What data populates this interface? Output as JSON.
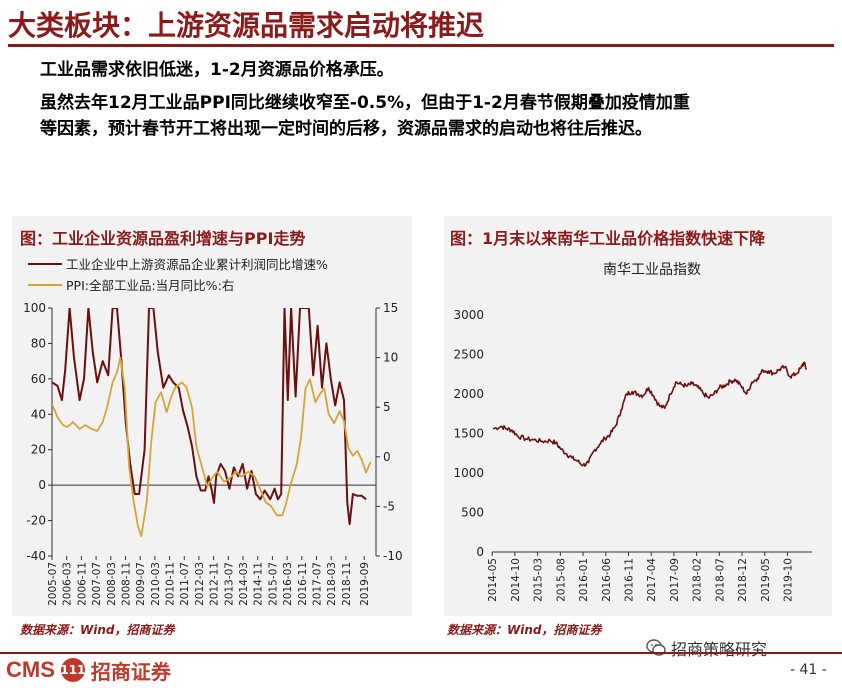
{
  "header": {
    "title": "大类板块：上游资源品需求启动将推迟"
  },
  "body": {
    "line1": "工业品需求依旧低迷，1-2月资源品价格承压。",
    "line2": "虽然去年12月工业品PPI同比继续收窄至-0.5%，但由于1-2月春节假期叠加疫情加重",
    "line3": "等因素，预计春节开工将出现一定时间的后移，资源品需求的启动也将往后推迟。"
  },
  "colors": {
    "accent": "#8b1a1a",
    "series_profit": "#6b0f0f",
    "series_ppi": "#d4a53a",
    "nanhua": "#6b0f0f"
  },
  "figure1": {
    "title": "图：工业企业资源品盈利增速与PPI走势",
    "source": "数据来源：Wind，招商证券"
  },
  "figure2": {
    "title": "图：1月末以来南华工业品价格指数快速下降",
    "source": "数据来源：Wind，招商证券"
  },
  "footer": {
    "brand_en": "CMS",
    "brand_badge": "111",
    "brand_cn": "招商证券",
    "wechat_account": "招商策略研究",
    "page_number": "- 41 -"
  },
  "chart_data": [
    {
      "type": "line",
      "title": "",
      "legend": [
        "工业企业中上游资源品企业累计利润同比增速%",
        "PPI:全部工业品:当月同比%:右"
      ],
      "legend_position": "top-left",
      "x_ticks": [
        "2005-07",
        "2006-03",
        "2006-11",
        "2007-07",
        "2008-03",
        "2008-11",
        "2009-07",
        "2010-03",
        "2010-11",
        "2011-07",
        "2012-03",
        "2012-11",
        "2013-07",
        "2014-03",
        "2014-11",
        "2015-07",
        "2016-03",
        "2016-11",
        "2017-07",
        "2018-03",
        "2018-11",
        "2019-09"
      ],
      "y_left": {
        "ticks": [
          -40,
          -20,
          0,
          20,
          40,
          60,
          80,
          100
        ],
        "range": [
          -40,
          100
        ]
      },
      "y_right": {
        "ticks": [
          -10,
          -5,
          0,
          5,
          10,
          15
        ],
        "range": [
          -10,
          15
        ]
      },
      "x_range": [
        2005.5,
        2020.2
      ],
      "grid": false,
      "series": [
        {
          "name": "工业企业中上游资源品企业累计利润同比增速%",
          "axis": "left",
          "color": "#6b0f0f",
          "points": [
            [
              2005.5,
              58
            ],
            [
              2005.75,
              56
            ],
            [
              2005.95,
              48
            ],
            [
              2006.1,
              65
            ],
            [
              2006.3,
              100
            ],
            [
              2006.5,
              72
            ],
            [
              2006.75,
              48
            ],
            [
              2006.95,
              60
            ],
            [
              2007.15,
              100
            ],
            [
              2007.35,
              75
            ],
            [
              2007.55,
              58
            ],
            [
              2007.8,
              70
            ],
            [
              2008.05,
              62
            ],
            [
              2008.25,
              100
            ],
            [
              2008.45,
              100
            ],
            [
              2008.65,
              70
            ],
            [
              2008.85,
              35
            ],
            [
              2009.05,
              12
            ],
            [
              2009.25,
              -5
            ],
            [
              2009.45,
              -5
            ],
            [
              2009.7,
              20
            ],
            [
              2009.9,
              100
            ],
            [
              2010.1,
              100
            ],
            [
              2010.3,
              75
            ],
            [
              2010.55,
              55
            ],
            [
              2010.8,
              62
            ],
            [
              2011.0,
              58
            ],
            [
              2011.25,
              55
            ],
            [
              2011.45,
              42
            ],
            [
              2011.65,
              33
            ],
            [
              2011.85,
              22
            ],
            [
              2012.05,
              5
            ],
            [
              2012.25,
              -3
            ],
            [
              2012.45,
              -3
            ],
            [
              2012.6,
              5
            ],
            [
              2012.75,
              -3
            ],
            [
              2012.85,
              -10
            ],
            [
              2012.95,
              5
            ],
            [
              2013.15,
              12
            ],
            [
              2013.35,
              8
            ],
            [
              2013.55,
              -2
            ],
            [
              2013.75,
              10
            ],
            [
              2013.95,
              5
            ],
            [
              2014.15,
              12
            ],
            [
              2014.35,
              -2
            ],
            [
              2014.55,
              8
            ],
            [
              2014.75,
              -5
            ],
            [
              2014.95,
              -8
            ],
            [
              2015.15,
              -3
            ],
            [
              2015.4,
              -8
            ],
            [
              2015.6,
              -2
            ],
            [
              2015.75,
              -8
            ],
            [
              2015.9,
              -5
            ],
            [
              2016.05,
              100
            ],
            [
              2016.2,
              48
            ],
            [
              2016.35,
              100
            ],
            [
              2016.55,
              50
            ],
            [
              2016.75,
              100
            ],
            [
              2016.95,
              100
            ],
            [
              2017.15,
              100
            ],
            [
              2017.35,
              62
            ],
            [
              2017.55,
              90
            ],
            [
              2017.75,
              55
            ],
            [
              2017.95,
              80
            ],
            [
              2018.15,
              60
            ],
            [
              2018.35,
              45
            ],
            [
              2018.55,
              58
            ],
            [
              2018.75,
              48
            ],
            [
              2018.9,
              -10
            ],
            [
              2019.0,
              -22
            ],
            [
              2019.15,
              -5
            ],
            [
              2019.35,
              -6
            ],
            [
              2019.55,
              -6
            ],
            [
              2019.75,
              -8
            ]
          ]
        },
        {
          "name": "PPI:全部工业品:当月同比%:右",
          "axis": "right",
          "color": "#d4a53a",
          "points": [
            [
              2005.5,
              5.3
            ],
            [
              2005.75,
              4.0
            ],
            [
              2006.0,
              3.2
            ],
            [
              2006.2,
              3.0
            ],
            [
              2006.45,
              3.5
            ],
            [
              2006.75,
              2.8
            ],
            [
              2007.0,
              3.2
            ],
            [
              2007.3,
              2.8
            ],
            [
              2007.55,
              2.6
            ],
            [
              2007.8,
              3.5
            ],
            [
              2008.0,
              5.0
            ],
            [
              2008.25,
              7.5
            ],
            [
              2008.45,
              8.5
            ],
            [
              2008.6,
              10.0
            ],
            [
              2008.8,
              7.0
            ],
            [
              2009.0,
              -1.0
            ],
            [
              2009.2,
              -4.5
            ],
            [
              2009.4,
              -7.0
            ],
            [
              2009.55,
              -8.0
            ],
            [
              2009.8,
              -4.5
            ],
            [
              2010.0,
              1.5
            ],
            [
              2010.2,
              5.5
            ],
            [
              2010.45,
              6.5
            ],
            [
              2010.7,
              4.5
            ],
            [
              2010.9,
              6.0
            ],
            [
              2011.1,
              7.0
            ],
            [
              2011.4,
              7.5
            ],
            [
              2011.6,
              7.0
            ],
            [
              2011.85,
              5.0
            ],
            [
              2012.05,
              1.0
            ],
            [
              2012.3,
              -1.0
            ],
            [
              2012.55,
              -3.0
            ],
            [
              2012.8,
              -2.0
            ],
            [
              2013.0,
              -1.5
            ],
            [
              2013.3,
              -2.5
            ],
            [
              2013.55,
              -2.2
            ],
            [
              2013.85,
              -1.5
            ],
            [
              2014.1,
              -2.0
            ],
            [
              2014.4,
              -1.5
            ],
            [
              2014.7,
              -2.0
            ],
            [
              2014.95,
              -3.3
            ],
            [
              2015.2,
              -4.6
            ],
            [
              2015.45,
              -5.0
            ],
            [
              2015.7,
              -5.9
            ],
            [
              2015.95,
              -5.9
            ],
            [
              2016.1,
              -4.9
            ],
            [
              2016.35,
              -2.6
            ],
            [
              2016.6,
              -0.8
            ],
            [
              2016.8,
              2.0
            ],
            [
              2017.0,
              6.9
            ],
            [
              2017.2,
              7.8
            ],
            [
              2017.45,
              5.5
            ],
            [
              2017.65,
              6.3
            ],
            [
              2017.85,
              6.9
            ],
            [
              2018.05,
              4.3
            ],
            [
              2018.3,
              3.4
            ],
            [
              2018.55,
              4.6
            ],
            [
              2018.75,
              3.6
            ],
            [
              2018.95,
              0.9
            ],
            [
              2019.15,
              0.1
            ],
            [
              2019.35,
              0.6
            ],
            [
              2019.55,
              -0.3
            ],
            [
              2019.75,
              -1.6
            ],
            [
              2019.95,
              -0.5
            ]
          ]
        }
      ]
    },
    {
      "type": "line",
      "title": "南华工业品指数",
      "x_ticks": [
        "2014-05",
        "2014-10",
        "2015-03",
        "2015-08",
        "2016-01",
        "2016-06",
        "2016-11",
        "2017-04",
        "2017-09",
        "2018-02",
        "2018-07",
        "2018-12",
        "2019-05",
        "2019-10"
      ],
      "y": {
        "ticks": [
          0,
          500,
          1000,
          1500,
          2000,
          2500,
          3000
        ],
        "range": [
          0,
          3000
        ]
      },
      "x_range": [
        2014.33,
        2020.2
      ],
      "grid": false,
      "series": [
        {
          "name": "",
          "color": "#6b0f0f",
          "points": [
            [
              2014.35,
              1560
            ],
            [
              2014.5,
              1590
            ],
            [
              2014.6,
              1560
            ],
            [
              2014.7,
              1540
            ],
            [
              2014.8,
              1470
            ],
            [
              2014.95,
              1430
            ],
            [
              2015.1,
              1420
            ],
            [
              2015.25,
              1400
            ],
            [
              2015.4,
              1410
            ],
            [
              2015.5,
              1380
            ],
            [
              2015.6,
              1300
            ],
            [
              2015.7,
              1240
            ],
            [
              2015.8,
              1190
            ],
            [
              2015.9,
              1150
            ],
            [
              2016.0,
              1100
            ],
            [
              2016.1,
              1130
            ],
            [
              2016.2,
              1280
            ],
            [
              2016.3,
              1360
            ],
            [
              2016.4,
              1440
            ],
            [
              2016.5,
              1490
            ],
            [
              2016.6,
              1600
            ],
            [
              2016.7,
              1800
            ],
            [
              2016.8,
              2000
            ],
            [
              2016.9,
              2030
            ],
            [
              2017.0,
              2000
            ],
            [
              2017.1,
              1980
            ],
            [
              2017.2,
              2080
            ],
            [
              2017.3,
              1970
            ],
            [
              2017.4,
              1850
            ],
            [
              2017.5,
              1820
            ],
            [
              2017.6,
              2000
            ],
            [
              2017.7,
              2150
            ],
            [
              2017.8,
              2120
            ],
            [
              2017.9,
              2100
            ],
            [
              2018.0,
              2130
            ],
            [
              2018.1,
              2090
            ],
            [
              2018.2,
              2010
            ],
            [
              2018.3,
              1950
            ],
            [
              2018.4,
              2000
            ],
            [
              2018.5,
              2080
            ],
            [
              2018.6,
              2110
            ],
            [
              2018.7,
              2160
            ],
            [
              2018.8,
              2180
            ],
            [
              2018.9,
              2100
            ],
            [
              2019.0,
              2000
            ],
            [
              2019.1,
              2150
            ],
            [
              2019.2,
              2200
            ],
            [
              2019.3,
              2300
            ],
            [
              2019.4,
              2290
            ],
            [
              2019.5,
              2260
            ],
            [
              2019.6,
              2310
            ],
            [
              2019.7,
              2340
            ],
            [
              2019.8,
              2220
            ],
            [
              2019.9,
              2250
            ],
            [
              2020.0,
              2330
            ],
            [
              2020.05,
              2400
            ],
            [
              2020.1,
              2310
            ]
          ]
        }
      ]
    }
  ]
}
